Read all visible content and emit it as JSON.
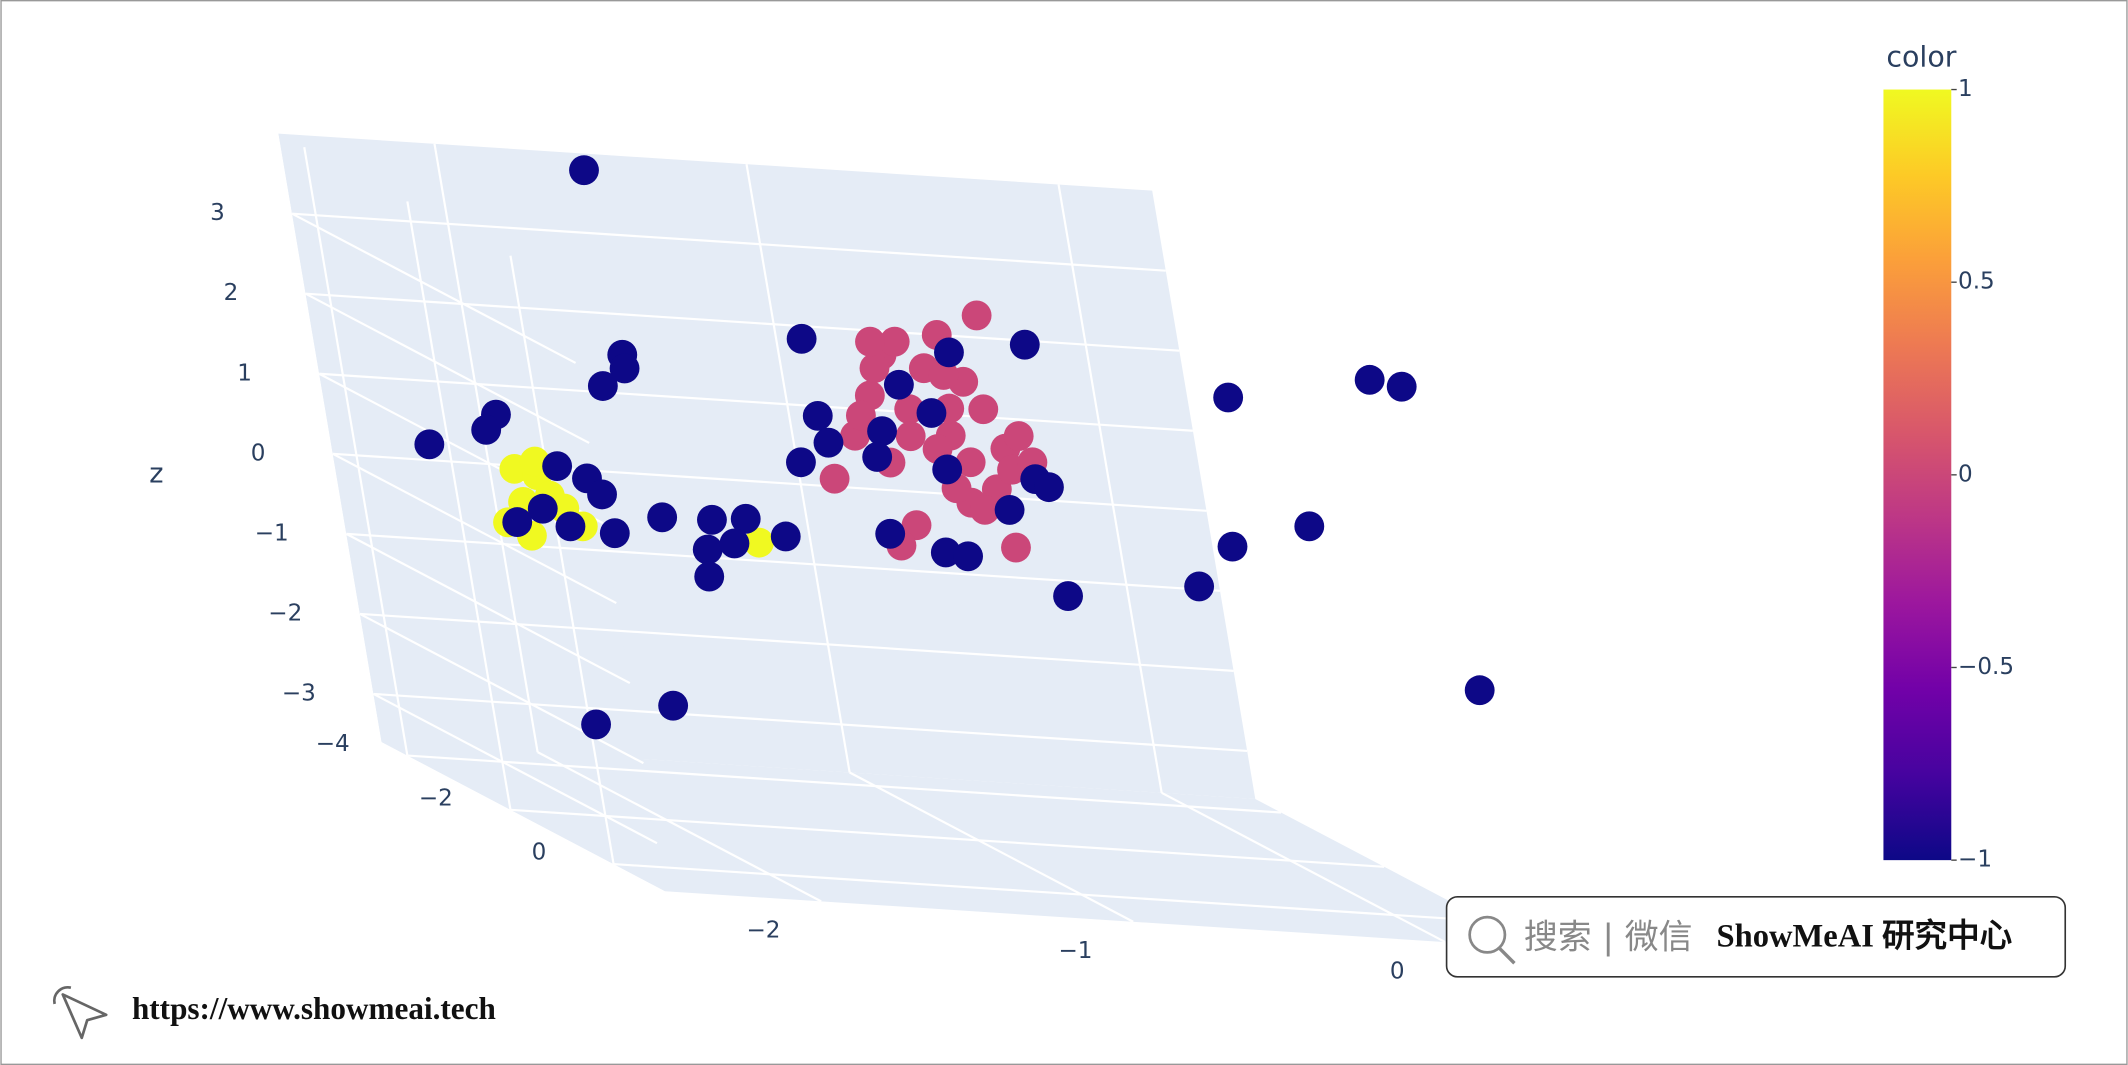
{
  "chart_data": {
    "type": "scatter3d",
    "zaxis_title": "z",
    "x": [
      -1,
      -1,
      -1,
      -1,
      -1,
      -1,
      -1,
      -1,
      -1,
      -1,
      -1,
      -1,
      -1,
      -1,
      -1,
      -1,
      -1,
      -1,
      -1,
      -1,
      -1,
      -1,
      -1,
      -1,
      -1,
      -1,
      -1,
      -1,
      -1,
      -1,
      -1,
      -1,
      -2,
      -2,
      -2,
      -2,
      -2,
      -2,
      -2,
      -2,
      -2,
      -1,
      -4.5,
      -1,
      -1,
      -1,
      -1,
      -1,
      -2,
      -2,
      -3,
      -1,
      0.5,
      0.5,
      1,
      0,
      0,
      0,
      0,
      -1,
      -1,
      -1,
      -1,
      -1,
      -1,
      -1,
      -1,
      -1,
      -1,
      -2,
      -2,
      -2,
      -2,
      -2,
      -1,
      -1,
      -1,
      -1,
      -1,
      -1,
      -1,
      -1,
      -1,
      -1,
      0,
      0,
      -2,
      -2,
      -1,
      -1
    ],
    "y": [
      -1.2,
      -1.01,
      -0.87,
      -1.26,
      -1.14,
      -1.02,
      -0.95,
      -1.33,
      -0.97,
      -0.85,
      -0.8,
      -0.9,
      -0.99,
      -0.84,
      -1.42,
      -1.18,
      -1.24,
      -0.87,
      -1.15,
      -1.07,
      -1.01,
      -1.23,
      -0.9,
      -1.23,
      -1.07,
      -0.77,
      -1.3,
      -1.03,
      -0.95,
      -1.23,
      -1.01,
      -1.15,
      -2.3,
      -2.23,
      -2.29,
      -2.2,
      -2.35,
      -2.28,
      -2.11,
      -2.16,
      -2.23,
      -1.7,
      -1.53,
      -1.45,
      -0.73,
      -2.04,
      -2.04,
      -2.12,
      -2.33,
      -2.37,
      -2.41,
      -0.1,
      0.14,
      0.24,
      0.25,
      -0.06,
      -0.32,
      -0.45,
      -0.88,
      -0.77,
      -0.73,
      -1.44,
      -1.42,
      -1.52,
      -1.16,
      -0.98,
      -1.07,
      -1.24,
      -1.27,
      -2.16,
      -2.07,
      -2.03,
      -2.15,
      -2.01,
      -2.0,
      -1.84,
      -1.73,
      -1.61,
      -1.87,
      -1.78,
      -1.88,
      -1.27,
      -1.1,
      -1.03,
      -2.48,
      -2.22,
      -2.32,
      -2.23,
      -0.87,
      -1.05
    ],
    "z": [
      2.75,
      3.05,
      3.33,
      2.23,
      2.09,
      1.79,
      2.48,
      1.71,
      1.47,
      1.67,
      1.84,
      1.15,
      0.96,
      1.41,
      1.15,
      0.63,
      0.36,
      0.43,
      2.93,
      2.62,
      2.13,
      2.58,
      2.15,
      1.4,
      1.61,
      1.52,
      1.97,
      1.13,
      0.88,
      2.91,
      2.55,
      1.75,
      0.71,
      0.65,
      0.3,
      0.4,
      0.03,
      -0.12,
      0.04,
      0.25,
      0.82,
      0.28,
      3.79,
      2.89,
      3.0,
      2.54,
      2.37,
      2.13,
      1.38,
      1.18,
      0.65,
      2.5,
      3.29,
      3.23,
      -0.39,
      1.24,
      0.92,
      0.39,
      0.16,
      1.31,
      1.22,
      1.93,
      1.6,
      1.33,
      2.39,
      2.84,
      2.06,
      1.79,
      1.46,
      0.78,
      0.65,
      0.46,
      0.03,
      -0.02,
      0.52,
      0.53,
      0.57,
      0.38,
      0.15,
      0.25,
      -0.19,
      0.5,
      0.31,
      0.28,
      -1.85,
      -1.55,
      0.04,
      0.23,
      0.9,
      1.36
    ],
    "color": [
      0,
      0,
      0,
      0,
      0,
      0,
      0,
      0,
      0,
      0,
      0,
      0,
      0,
      0,
      0,
      0,
      0,
      0,
      0,
      0,
      0,
      0,
      0,
      0,
      0,
      0,
      0,
      0,
      0,
      0,
      0,
      0,
      1,
      1,
      1,
      1,
      1,
      1,
      1,
      1,
      1,
      1,
      -1,
      -1,
      -1,
      -1,
      -1,
      -1,
      -1,
      -1,
      -1,
      -1,
      -1,
      -1,
      -1,
      -1,
      -1,
      -1,
      -1,
      -1,
      -1,
      -1,
      -1,
      -1,
      -1,
      -1,
      -1,
      -1,
      -1,
      -1,
      -1,
      -1,
      -1,
      -1,
      -1,
      -1,
      -1,
      -1,
      -1,
      -1,
      -1,
      -1,
      -1,
      -1,
      -1,
      -1,
      -1,
      -1,
      -1,
      -1
    ],
    "xlim": [
      -4.5,
      1
    ],
    "ylim": [
      -2.5,
      0.3
    ],
    "zlim": [
      -3.6,
      4
    ],
    "xticks": [
      {
        "value": -4,
        "label": "−4"
      },
      {
        "value": -2,
        "label": "−2"
      },
      0
    ],
    "yticks": [
      {
        "value": -2,
        "label": "−2"
      },
      {
        "value": -1,
        "label": "−1"
      },
      0
    ],
    "zticks": [
      {
        "value": -3,
        "label": "−3"
      },
      {
        "value": -2,
        "label": "−2"
      },
      {
        "value": -1,
        "label": "−1"
      },
      0,
      1,
      2,
      3
    ],
    "colorscale": [
      "#0d0887",
      "#46039f",
      "#7201a8",
      "#9c179e",
      "#bd3786",
      "#d8576b",
      "#ed7953",
      "#fb9f3a",
      "#fdca26",
      "#f0f921"
    ],
    "colorbar": {
      "title": "color",
      "lim": [
        -1,
        1
      ],
      "ticks": [
        {
          "value": -1,
          "label": "−1"
        },
        {
          "value": -0.5,
          "label": "−0.5"
        },
        0,
        0.5,
        1
      ]
    },
    "grid": true,
    "background": "#e5ecf6"
  },
  "watermark": {
    "search": "搜索 | 微信",
    "brand": "ShowMeAI 研究中心"
  },
  "footer": {
    "url": "https://www.showmeai.tech"
  }
}
